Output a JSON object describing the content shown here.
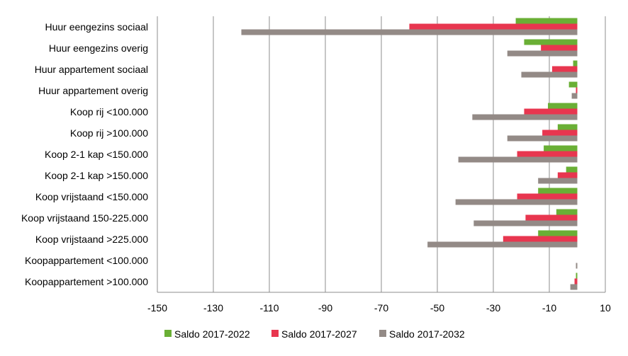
{
  "chart_data": {
    "type": "bar",
    "orientation": "horizontal",
    "title": "",
    "xlabel": "",
    "ylabel": "",
    "xlim": [
      -150,
      10
    ],
    "x_ticks": [
      -150,
      -130,
      -110,
      -90,
      -70,
      -50,
      -30,
      -10,
      10
    ],
    "grid": "vertical",
    "legend_position": "bottom",
    "categories": [
      "Huur eengezins sociaal",
      "Huur eengezins overig",
      "Huur appartement sociaal",
      "Huur appartement overig",
      "Koop rij <100.000",
      "Koop rij >100.000",
      "Koop 2-1 kap <150.000",
      "Koop 2-1 kap >150.000",
      "Koop vrijstaand <150.000",
      "Koop vrijstaand 150-225.000",
      "Koop vrijstaand >225.000",
      "Koopappartement <100.000",
      "Koopappartement >100.000"
    ],
    "series": [
      {
        "name": "Saldo 2017-2022",
        "color": "#6aaf35",
        "values": [
          -22,
          -19,
          -1.5,
          -3,
          -10.5,
          -7,
          -12,
          -4,
          -14,
          -7.5,
          -14,
          0,
          -0.5
        ]
      },
      {
        "name": "Saldo 2017-2027",
        "color": "#e8364f",
        "values": [
          -60,
          -13,
          -9,
          -0.5,
          -19,
          -12.5,
          -21.5,
          -7,
          -21.5,
          -18.5,
          -26.5,
          0,
          -1
        ]
      },
      {
        "name": "Saldo 2017-2032",
        "color": "#938a86",
        "values": [
          -120,
          -25,
          -20,
          -2,
          -37.5,
          -25,
          -42.5,
          -14,
          -43.5,
          -37,
          -53.5,
          -0.5,
          -2.5
        ]
      }
    ]
  }
}
